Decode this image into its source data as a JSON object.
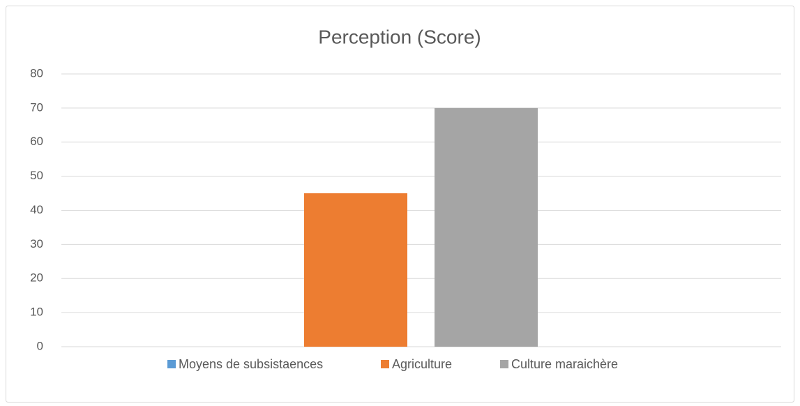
{
  "chart_data": {
    "type": "bar",
    "title": "Perception (Score)",
    "categories": [
      null
    ],
    "series": [
      {
        "name": "Moyens de subsistaences",
        "color": "#5b9bd5",
        "values": [
          0
        ]
      },
      {
        "name": "Agriculture",
        "color": "#ed7d31",
        "values": [
          45
        ]
      },
      {
        "name": "Culture maraichère",
        "color": "#a5a5a5",
        "values": [
          70
        ]
      }
    ],
    "ylim": [
      0,
      80
    ],
    "yticks": [
      0,
      10,
      20,
      30,
      40,
      50,
      60,
      70,
      80
    ],
    "grid": true,
    "legend": "bottom"
  }
}
